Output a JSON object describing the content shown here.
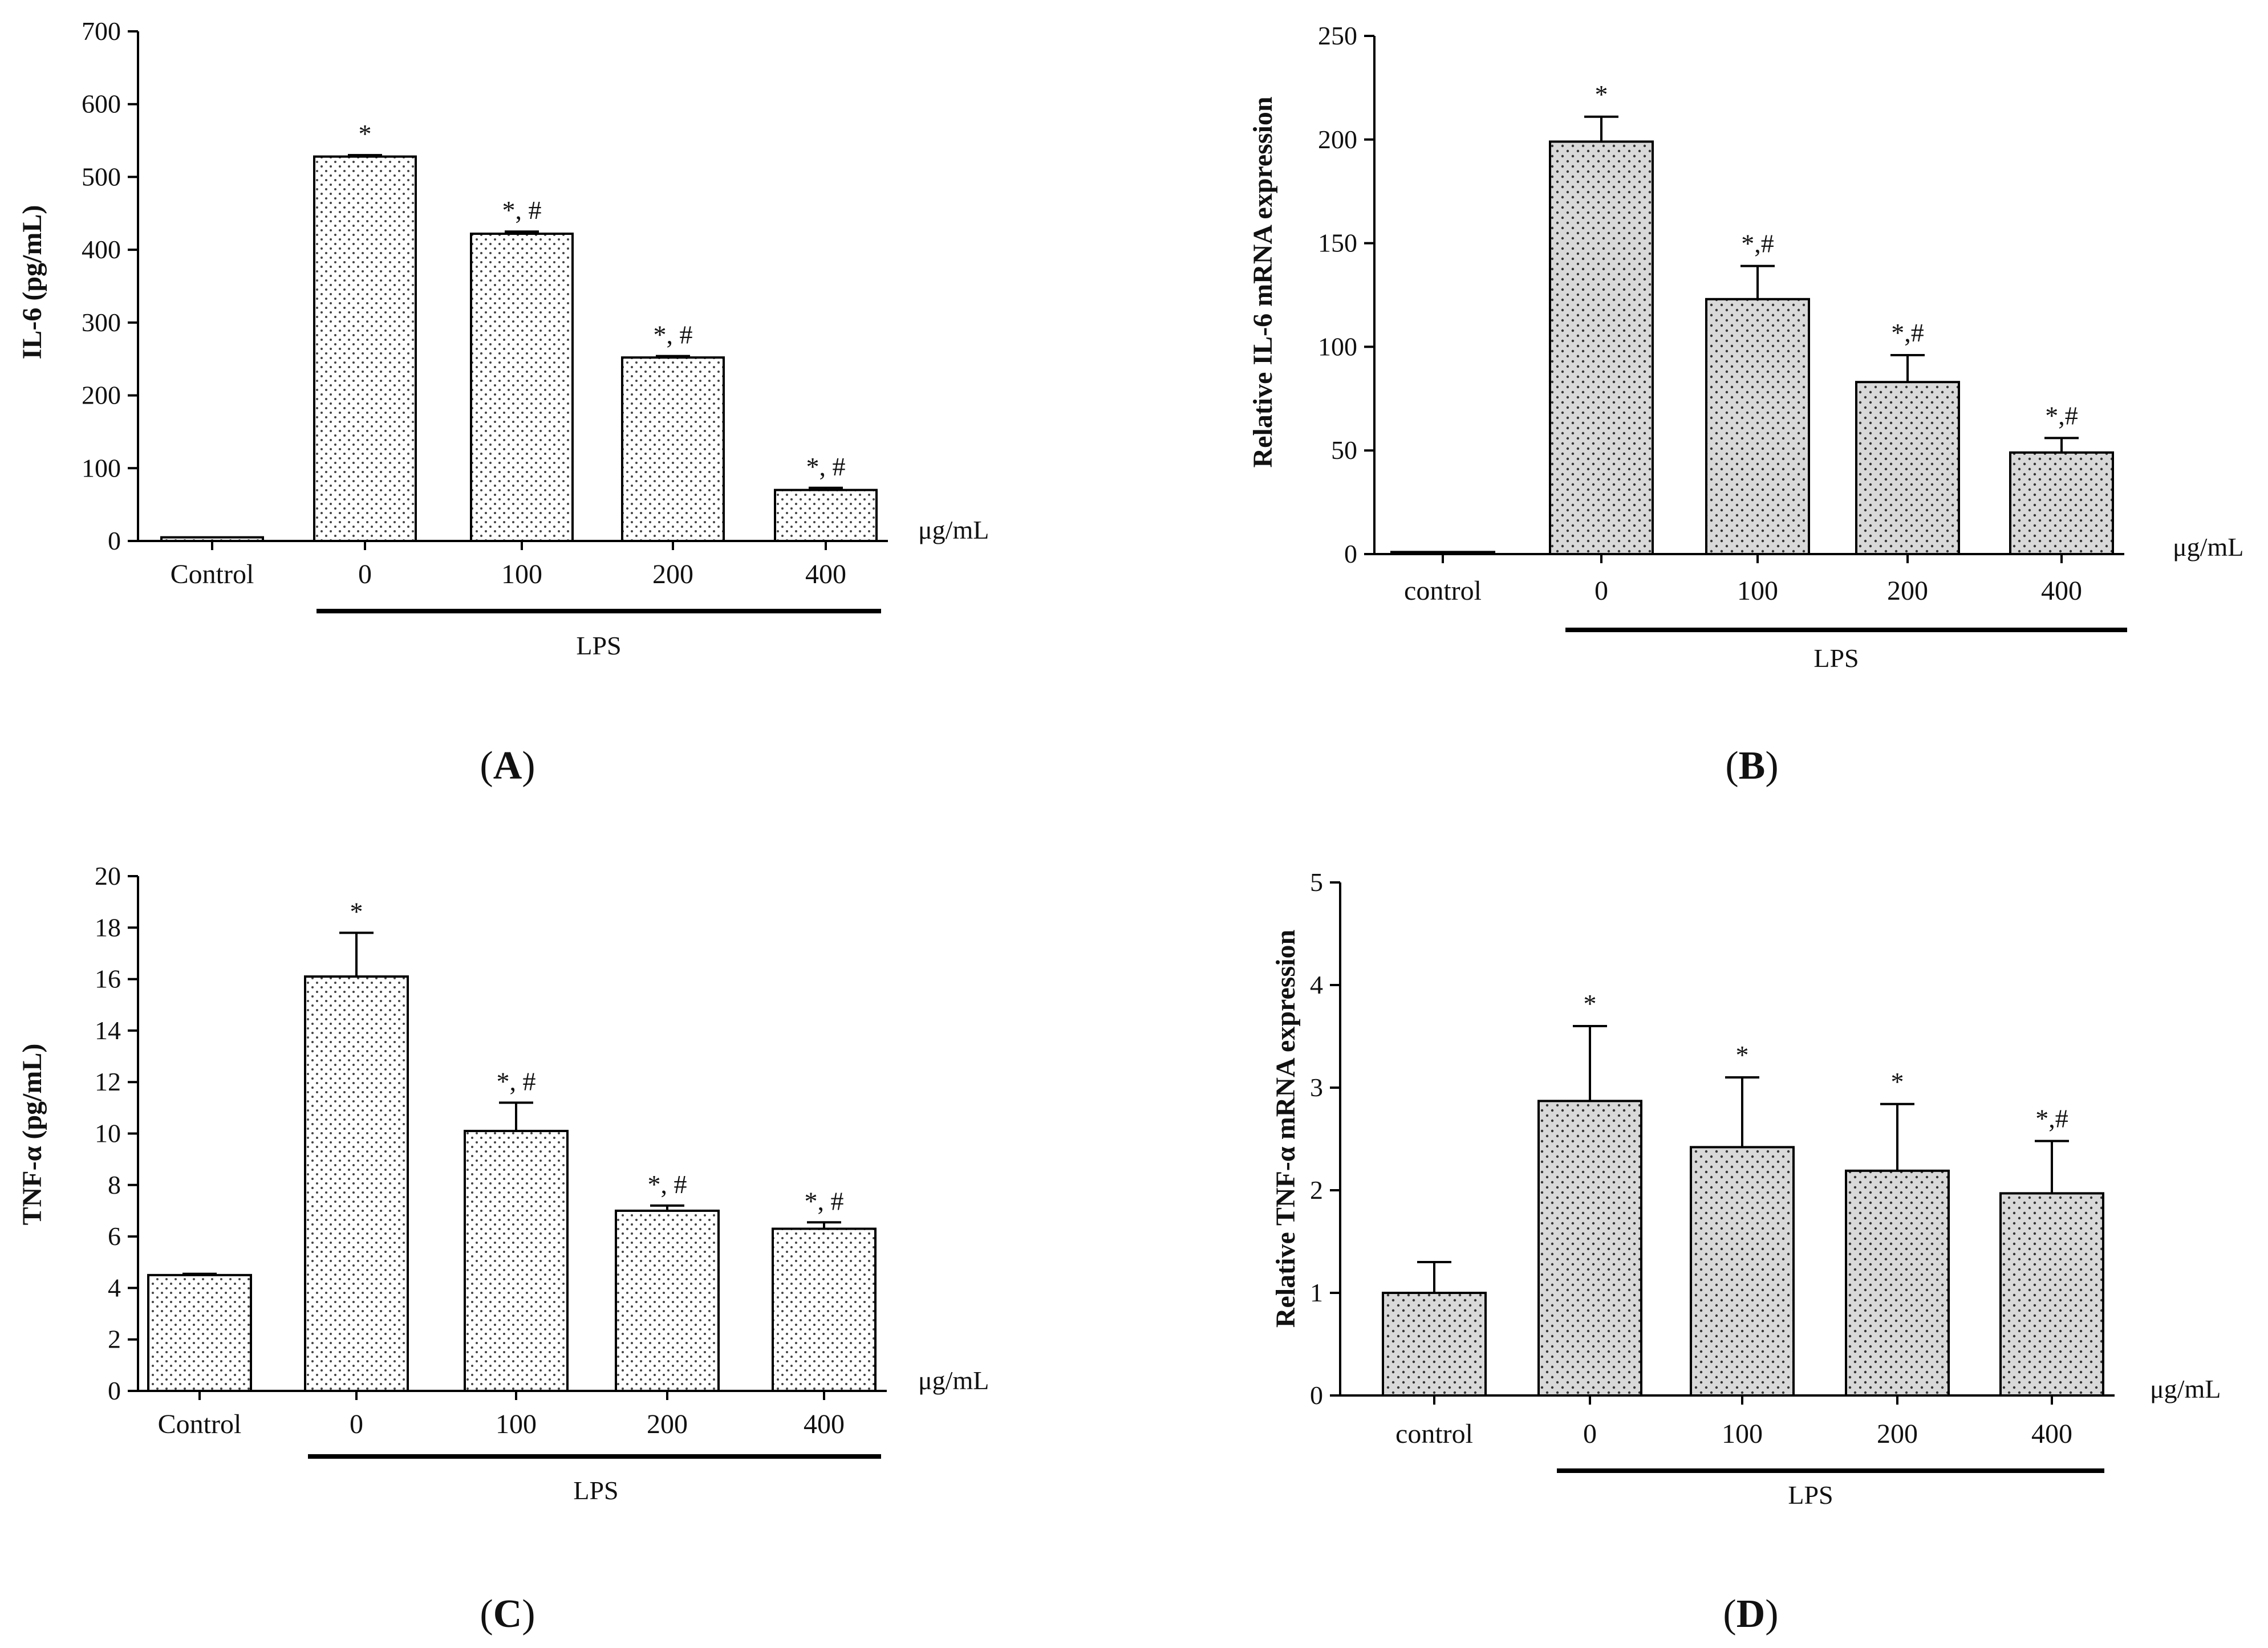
{
  "chart_data": [
    {
      "type": "bar",
      "panel": "A",
      "panel_label_text": "A",
      "categories": [
        "Control",
        "0",
        "100",
        "200",
        "400"
      ],
      "values": [
        5,
        528,
        422,
        252,
        70
      ],
      "errors": [
        0,
        2,
        3,
        2,
        3
      ],
      "significance": [
        "",
        "*",
        "*, #",
        "*, #",
        "*, #"
      ],
      "ylabel": "IL-6 (pg/mL)",
      "unit_label": "μg/mL",
      "group_label": "LPS",
      "ylim": [
        0,
        700
      ],
      "yticks": [
        0,
        100,
        200,
        300,
        400,
        500,
        600,
        700
      ],
      "ytick_labels": [
        "0",
        "100",
        "200",
        "300",
        "400",
        "500",
        "600",
        "700"
      ],
      "bar_fill": "#ffffff",
      "dot_color": "#444444"
    },
    {
      "type": "bar",
      "panel": "B",
      "panel_label_text": "B",
      "categories": [
        "control",
        "0",
        "100",
        "200",
        "400"
      ],
      "values": [
        1,
        199,
        123,
        83,
        49
      ],
      "errors": [
        0,
        12,
        16,
        13,
        7
      ],
      "significance": [
        "",
        "*",
        "*,#",
        "*,#",
        "*,#"
      ],
      "ylabel": "Relative IL-6 mRNA expression",
      "unit_label": "μg/mL",
      "group_label": "LPS",
      "ylim": [
        0,
        250
      ],
      "yticks": [
        0,
        50,
        100,
        150,
        200,
        250
      ],
      "ytick_labels": [
        "0",
        "50",
        "100",
        "150",
        "200",
        "250"
      ],
      "bar_fill": "#d9d9d9",
      "dot_color": "#333333"
    },
    {
      "type": "bar",
      "panel": "C",
      "panel_label_text": "C",
      "categories": [
        "Control",
        "0",
        "100",
        "200",
        "400"
      ],
      "values": [
        4.5,
        16.1,
        10.1,
        7.0,
        6.3
      ],
      "errors": [
        0.05,
        1.7,
        1.1,
        0.2,
        0.25
      ],
      "significance": [
        "",
        "*",
        "*, #",
        "*, #",
        "*, #"
      ],
      "ylabel": "TNF-α (pg/mL)",
      "unit_label": "μg/mL",
      "group_label": "LPS",
      "ylim": [
        0,
        20
      ],
      "yticks": [
        0,
        2,
        4,
        6,
        8,
        10,
        12,
        14,
        16,
        18,
        20
      ],
      "ytick_labels": [
        "0",
        "2",
        "4",
        "6",
        "8",
        "10",
        "12",
        "14",
        "16",
        "18",
        "20"
      ],
      "bar_fill": "#ffffff",
      "dot_color": "#444444"
    },
    {
      "type": "bar",
      "panel": "D",
      "panel_label_text": "D",
      "categories": [
        "control",
        "0",
        "100",
        "200",
        "400"
      ],
      "values": [
        1.0,
        2.87,
        2.42,
        2.19,
        1.97
      ],
      "errors": [
        0.3,
        0.73,
        0.68,
        0.65,
        0.51
      ],
      "significance": [
        "",
        "*",
        "*",
        "*",
        "*,#"
      ],
      "ylabel": "Relative TNF-α mRNA expression",
      "unit_label": "μg/mL",
      "group_label": "LPS",
      "ylim": [
        0,
        5
      ],
      "yticks": [
        0,
        1,
        2,
        3,
        4,
        5
      ],
      "ytick_labels": [
        "0",
        "1",
        "2",
        "3",
        "4",
        "5"
      ],
      "bar_fill": "#d9d9d9",
      "dot_color": "#333333"
    }
  ]
}
